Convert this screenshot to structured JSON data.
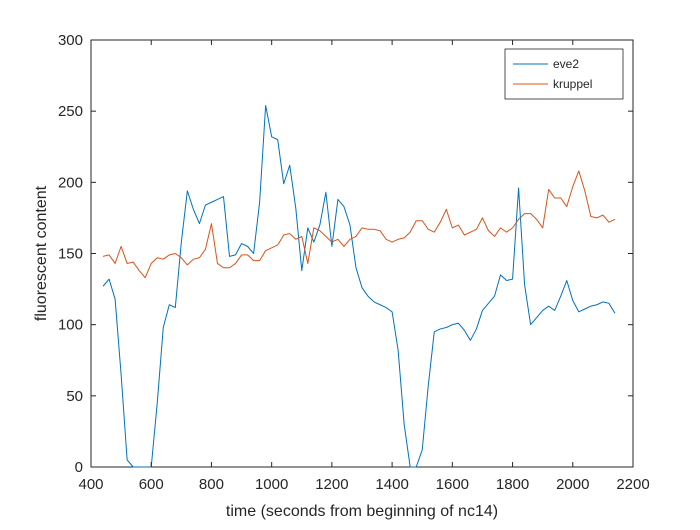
{
  "chart_data": {
    "type": "line",
    "title": "",
    "xlabel": "time (seconds from beginning of nc14)",
    "ylabel": "fluorescent content",
    "xlim": [
      400,
      2200
    ],
    "ylim": [
      0,
      300
    ],
    "xticks": [
      400,
      600,
      800,
      1000,
      1200,
      1400,
      1600,
      1800,
      2000,
      2200
    ],
    "yticks": [
      0,
      50,
      100,
      150,
      200,
      250,
      300
    ],
    "grid": false,
    "legend_position": "top-right",
    "series": [
      {
        "name": "eve2",
        "color": "#0072BD",
        "points": [
          [
            440,
            127
          ],
          [
            460,
            132
          ],
          [
            480,
            118
          ],
          [
            500,
            65
          ],
          [
            520,
            5
          ],
          [
            540,
            0
          ],
          [
            560,
            0
          ],
          [
            580,
            0
          ],
          [
            600,
            0
          ],
          [
            620,
            45
          ],
          [
            640,
            98
          ],
          [
            660,
            114
          ],
          [
            680,
            112
          ],
          [
            700,
            158
          ],
          [
            720,
            194
          ],
          [
            740,
            181
          ],
          [
            760,
            171
          ],
          [
            780,
            184
          ],
          [
            800,
            186
          ],
          [
            820,
            188
          ],
          [
            840,
            190
          ],
          [
            860,
            148
          ],
          [
            880,
            149
          ],
          [
            900,
            157
          ],
          [
            920,
            155
          ],
          [
            940,
            150
          ],
          [
            960,
            186
          ],
          [
            980,
            254
          ],
          [
            1000,
            232
          ],
          [
            1020,
            230
          ],
          [
            1040,
            199
          ],
          [
            1060,
            212
          ],
          [
            1080,
            182
          ],
          [
            1100,
            138
          ],
          [
            1120,
            168
          ],
          [
            1140,
            158
          ],
          [
            1160,
            170
          ],
          [
            1180,
            193
          ],
          [
            1200,
            155
          ],
          [
            1220,
            188
          ],
          [
            1240,
            183
          ],
          [
            1260,
            170
          ],
          [
            1280,
            140
          ],
          [
            1300,
            126
          ],
          [
            1320,
            120
          ],
          [
            1340,
            116
          ],
          [
            1360,
            114
          ],
          [
            1380,
            112
          ],
          [
            1400,
            109
          ],
          [
            1420,
            82
          ],
          [
            1440,
            30
          ],
          [
            1460,
            0
          ],
          [
            1480,
            0
          ],
          [
            1500,
            12
          ],
          [
            1520,
            57
          ],
          [
            1540,
            95
          ],
          [
            1560,
            97
          ],
          [
            1580,
            98
          ],
          [
            1600,
            100
          ],
          [
            1620,
            101
          ],
          [
            1640,
            96
          ],
          [
            1660,
            89
          ],
          [
            1680,
            97
          ],
          [
            1700,
            110
          ],
          [
            1720,
            115
          ],
          [
            1740,
            120
          ],
          [
            1760,
            135
          ],
          [
            1780,
            131
          ],
          [
            1800,
            132
          ],
          [
            1820,
            196
          ],
          [
            1840,
            128
          ],
          [
            1860,
            100
          ],
          [
            1880,
            105
          ],
          [
            1900,
            110
          ],
          [
            1920,
            113
          ],
          [
            1940,
            110
          ],
          [
            1960,
            120
          ],
          [
            1980,
            131
          ],
          [
            2000,
            117
          ],
          [
            2020,
            109
          ],
          [
            2040,
            111
          ],
          [
            2060,
            113
          ],
          [
            2080,
            114
          ],
          [
            2100,
            116
          ],
          [
            2120,
            115
          ],
          [
            2140,
            108
          ]
        ]
      },
      {
        "name": "kruppel",
        "color": "#D95319",
        "points": [
          [
            440,
            148
          ],
          [
            460,
            149
          ],
          [
            480,
            143
          ],
          [
            500,
            155
          ],
          [
            520,
            143
          ],
          [
            540,
            144
          ],
          [
            560,
            138
          ],
          [
            580,
            133
          ],
          [
            600,
            143
          ],
          [
            620,
            147
          ],
          [
            640,
            146
          ],
          [
            660,
            149
          ],
          [
            680,
            150
          ],
          [
            700,
            147
          ],
          [
            720,
            142
          ],
          [
            740,
            146
          ],
          [
            760,
            147
          ],
          [
            780,
            153
          ],
          [
            800,
            171
          ],
          [
            820,
            143
          ],
          [
            840,
            140
          ],
          [
            860,
            140
          ],
          [
            880,
            143
          ],
          [
            900,
            149
          ],
          [
            920,
            149
          ],
          [
            940,
            145
          ],
          [
            960,
            145
          ],
          [
            980,
            152
          ],
          [
            1000,
            154
          ],
          [
            1020,
            156
          ],
          [
            1040,
            163
          ],
          [
            1060,
            164
          ],
          [
            1080,
            160
          ],
          [
            1100,
            162
          ],
          [
            1120,
            143
          ],
          [
            1140,
            168
          ],
          [
            1160,
            166
          ],
          [
            1180,
            162
          ],
          [
            1200,
            158
          ],
          [
            1220,
            160
          ],
          [
            1240,
            155
          ],
          [
            1260,
            160
          ],
          [
            1280,
            162
          ],
          [
            1300,
            168
          ],
          [
            1320,
            167
          ],
          [
            1340,
            167
          ],
          [
            1360,
            166
          ],
          [
            1380,
            160
          ],
          [
            1400,
            158
          ],
          [
            1420,
            160
          ],
          [
            1440,
            161
          ],
          [
            1460,
            165
          ],
          [
            1480,
            173
          ],
          [
            1500,
            173
          ],
          [
            1520,
            167
          ],
          [
            1540,
            165
          ],
          [
            1560,
            172
          ],
          [
            1580,
            181
          ],
          [
            1600,
            168
          ],
          [
            1620,
            170
          ],
          [
            1640,
            163
          ],
          [
            1660,
            165
          ],
          [
            1680,
            167
          ],
          [
            1700,
            175
          ],
          [
            1720,
            166
          ],
          [
            1740,
            162
          ],
          [
            1760,
            168
          ],
          [
            1780,
            165
          ],
          [
            1800,
            168
          ],
          [
            1820,
            174
          ],
          [
            1840,
            178
          ],
          [
            1860,
            178
          ],
          [
            1880,
            174
          ],
          [
            1900,
            168
          ],
          [
            1920,
            195
          ],
          [
            1940,
            189
          ],
          [
            1960,
            189
          ],
          [
            1980,
            183
          ],
          [
            2000,
            197
          ],
          [
            2020,
            208
          ],
          [
            2040,
            194
          ],
          [
            2060,
            176
          ],
          [
            2080,
            175
          ],
          [
            2100,
            177
          ],
          [
            2120,
            172
          ],
          [
            2140,
            174
          ]
        ]
      }
    ]
  }
}
